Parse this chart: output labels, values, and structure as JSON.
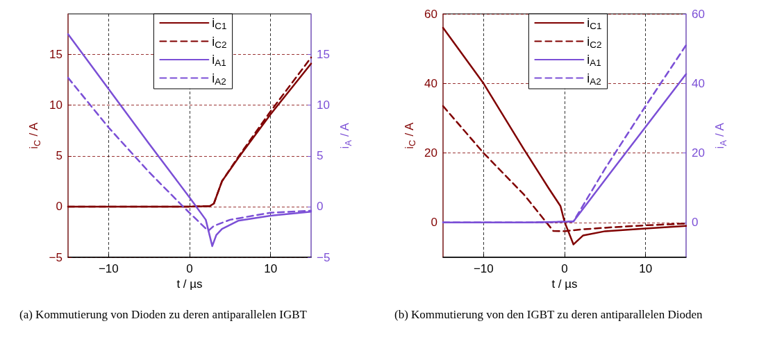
{
  "chart_data": [
    {
      "type": "line",
      "xlabel": "t / µs",
      "ylabel": "i$_{C}$ / A",
      "y2label": "i$_{A}$ / A",
      "xlim": [
        -15,
        15
      ],
      "xticks": [
        -10,
        0,
        10
      ],
      "ylim": [
        -5,
        19
      ],
      "yticks": [
        -5,
        0,
        5,
        10,
        15
      ],
      "y2lim": [
        -5,
        19
      ],
      "y2ticks": [
        -5,
        0,
        5,
        10,
        15
      ],
      "grid": true,
      "legend": "top",
      "marker": "none",
      "annotations": [
        "(a) Kommutierung von Dioden zu deren antiparallelen IGBT"
      ],
      "series": [
        {
          "name": "i$_{C1}$",
          "color": "#800000",
          "line_style": "solid",
          "x": [
            -15,
            -5,
            0,
            2.5,
            3,
            4,
            6.1,
            10,
            15
          ],
          "values": [
            0,
            0,
            0,
            0.05,
            0.3,
            2.5,
            4.9,
            9.1,
            14.1
          ]
        },
        {
          "name": "i$_{C2}$",
          "color": "#800000",
          "line_style": "dashed",
          "x": [
            -15,
            -5,
            0,
            2.5,
            3,
            4,
            6.1,
            10,
            15
          ],
          "values": [
            0,
            0,
            0,
            0.05,
            0.3,
            2.5,
            5,
            9.4,
            14.7
          ]
        },
        {
          "name": "i$_{A1}$",
          "color": "#7b4fd6",
          "line_style": "solid",
          "axis": "y2",
          "x": [
            -15,
            -10,
            -5,
            0,
            2,
            2.8,
            3.3,
            4,
            6,
            10,
            15
          ],
          "values": [
            17,
            11.6,
            6.2,
            0.9,
            -1.3,
            -3.9,
            -2.8,
            -2.2,
            -1.4,
            -0.9,
            -0.5
          ]
        },
        {
          "name": "i$_{A2}$",
          "color": "#7b4fd6",
          "line_style": "dashed",
          "axis": "y2",
          "x": [
            -15,
            -10,
            -5,
            -0.8,
            2.3,
            3,
            5,
            10,
            15
          ],
          "values": [
            12.7,
            7.8,
            3.4,
            0,
            -2.4,
            -1.9,
            -1.3,
            -0.6,
            -0.4
          ]
        }
      ]
    },
    {
      "type": "line",
      "xlabel": "t / µs",
      "ylabel": "i$_{C}$ / A",
      "y2label": "i$_{A}$ / A",
      "xlim": [
        -15,
        15
      ],
      "xticks": [
        -10,
        0,
        10
      ],
      "ylim": [
        -10,
        60
      ],
      "yticks": [
        0,
        20,
        40,
        60
      ],
      "y2lim": [
        -10,
        60
      ],
      "y2ticks": [
        0,
        20,
        40,
        60
      ],
      "grid": true,
      "legend": "top",
      "marker": "none",
      "annotations": [
        "(b) Kommutierung von den IGBT zu deren antiparallelen Dioden"
      ],
      "series": [
        {
          "name": "i$_{C1}$",
          "color": "#800000",
          "line_style": "solid",
          "x": [
            -15,
            -10,
            -5,
            -2,
            -0.5,
            0,
            1.1,
            2.3,
            5,
            10,
            15
          ],
          "values": [
            56,
            40,
            21,
            10,
            4.7,
            0.2,
            -6.3,
            -3.7,
            -2.5,
            -1.7,
            -1
          ]
        },
        {
          "name": "i$_{C2}$",
          "color": "#800000",
          "line_style": "dashed",
          "x": [
            -15,
            -10,
            -5,
            -1.4,
            0,
            2,
            5,
            10,
            15
          ],
          "values": [
            33.5,
            20,
            8,
            -2.4,
            -2.5,
            -2,
            -1.5,
            -0.8,
            -0.3
          ]
        },
        {
          "name": "i$_{A1}$",
          "color": "#7b4fd6",
          "line_style": "solid",
          "axis": "y2",
          "x": [
            -15,
            -5,
            0,
            1.1,
            5,
            10,
            15
          ],
          "values": [
            0,
            0,
            0.2,
            0.3,
            12.3,
            27.5,
            42.7
          ]
        },
        {
          "name": "i$_{A2}$",
          "color": "#7b4fd6",
          "line_style": "dashed",
          "axis": "y2",
          "x": [
            -15,
            -5,
            0,
            1.1,
            5,
            10,
            15
          ],
          "values": [
            0,
            0,
            0.2,
            0.3,
            15.5,
            33.5,
            51
          ]
        }
      ]
    }
  ]
}
